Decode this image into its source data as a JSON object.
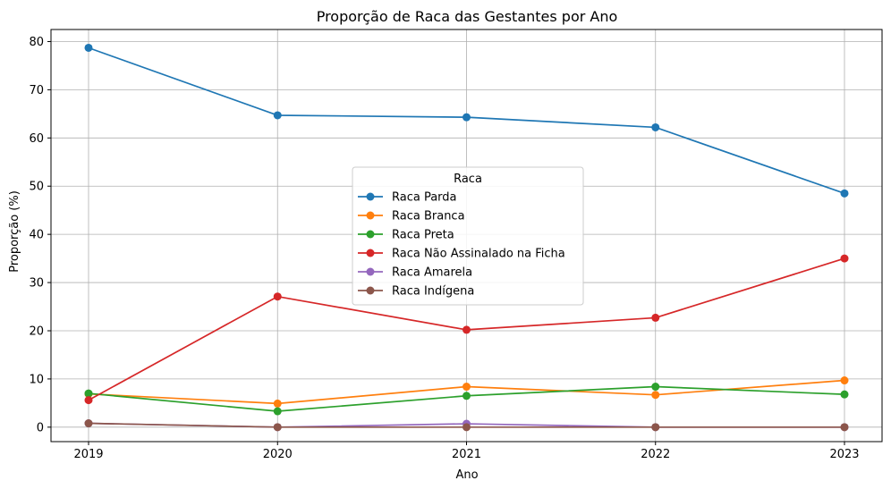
{
  "chart_data": {
    "type": "line",
    "title": "Proporção de Raca das Gestantes por Ano",
    "xlabel": "Ano",
    "ylabel": "Proporção (%)",
    "x": [
      "2019",
      "2020",
      "2021",
      "2022",
      "2023"
    ],
    "ylim": [
      -3,
      82.5
    ],
    "yticks": [
      "0",
      "10",
      "20",
      "30",
      "40",
      "50",
      "60",
      "70",
      "80"
    ],
    "grid": true,
    "legend": {
      "title": "Raca",
      "placement": "center"
    },
    "series": [
      {
        "name": "Raca Parda",
        "color": "#1f77b4",
        "values": [
          78.7,
          64.7,
          64.3,
          62.2,
          48.5
        ]
      },
      {
        "name": "Raca Branca",
        "color": "#ff7f0e",
        "values": [
          6.9,
          4.9,
          8.4,
          6.7,
          9.7
        ]
      },
      {
        "name": "Raca Preta",
        "color": "#2ca02c",
        "values": [
          7.0,
          3.3,
          6.5,
          8.4,
          6.8
        ]
      },
      {
        "name": "Raca Não Assinalado na Ficha",
        "color": "#d62728",
        "values": [
          5.6,
          27.1,
          20.2,
          22.7,
          35.0
        ]
      },
      {
        "name": "Raca Amarela",
        "color": "#9467bd",
        "values": [
          0.8,
          0.0,
          0.7,
          0.0,
          0.0
        ]
      },
      {
        "name": "Raca Indígena",
        "color": "#8c564b",
        "values": [
          0.8,
          0.0,
          0.0,
          0.0,
          0.0
        ]
      }
    ]
  }
}
